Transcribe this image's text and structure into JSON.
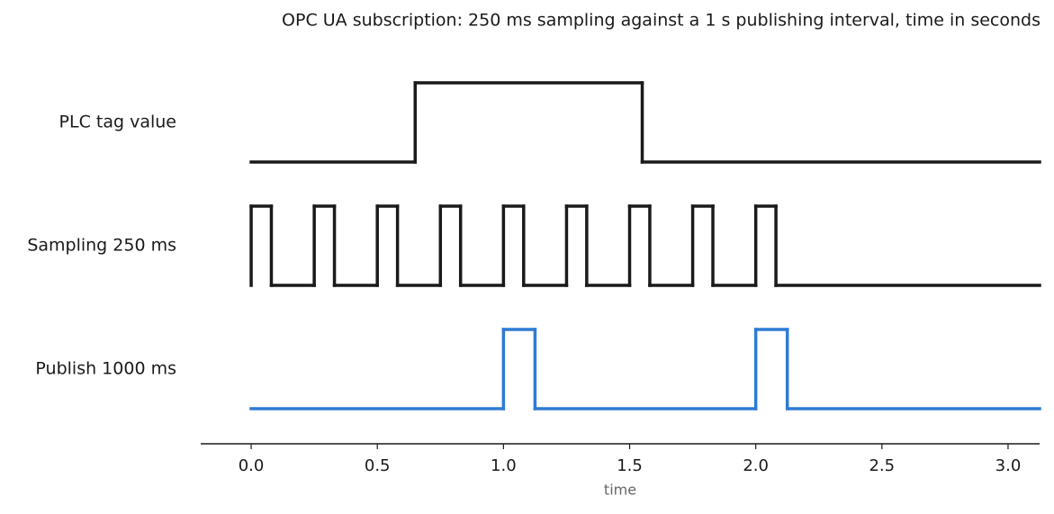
{
  "chart_data": {
    "type": "timing",
    "title": "OPC UA subscription: 250 ms sampling against a 1 s publishing interval, time in seconds",
    "xlabel": "time",
    "xlim": [
      -0.2,
      3.125
    ],
    "xticks": [
      {
        "value": 0,
        "label": "0.0"
      },
      0.5,
      {
        "value": 1,
        "label": "1.0"
      },
      1.5,
      {
        "value": 2,
        "label": "2.0"
      },
      2.5,
      {
        "value": 3,
        "label": "3.0"
      }
    ],
    "ylim": [
      0,
      1
    ],
    "series": [
      {
        "name": "PLC tag value",
        "color": "#1a1a1a",
        "x": [
          0,
          0.65,
          1.55,
          3.125
        ],
        "values": [
          0,
          1,
          0,
          0
        ]
      },
      {
        "name": "Sampling 250 ms",
        "color": "#1a1a1a",
        "x": [
          0,
          0.08,
          0.25,
          0.33,
          0.5,
          0.58,
          0.75,
          0.83,
          1.0,
          1.08,
          1.25,
          1.33,
          1.5,
          1.58,
          1.75,
          1.83,
          2.0,
          2.08,
          3.125
        ],
        "values": [
          1,
          0,
          1,
          0,
          1,
          0,
          1,
          0,
          1,
          0,
          1,
          0,
          1,
          0,
          1,
          0,
          1,
          0,
          0
        ]
      },
      {
        "name": "Publish 1000 ms",
        "color": "#2f7bd4",
        "x": [
          0,
          1.0,
          1.125,
          2.0,
          2.125,
          3.125
        ],
        "values": [
          0,
          1,
          0,
          1,
          0,
          0
        ]
      }
    ]
  }
}
